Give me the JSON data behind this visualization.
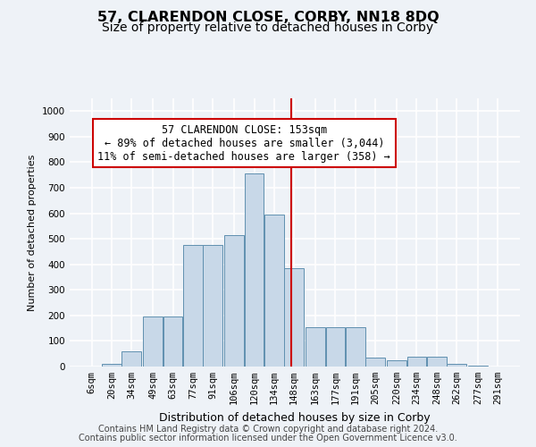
{
  "title": "57, CLARENDON CLOSE, CORBY, NN18 8DQ",
  "subtitle": "Size of property relative to detached houses in Corby",
  "xlabel": "Distribution of detached houses by size in Corby",
  "ylabel": "Number of detached properties",
  "footer1": "Contains HM Land Registry data © Crown copyright and database right 2024.",
  "footer2": "Contains public sector information licensed under the Open Government Licence v3.0.",
  "annotation_line1": "57 CLARENDON CLOSE: 153sqm",
  "annotation_line2": "← 89% of detached houses are smaller (3,044)",
  "annotation_line3": "11% of semi-detached houses are larger (358) →",
  "bar_color": "#c8d8e8",
  "bar_edge_color": "#6090b0",
  "vline_x": 153,
  "vline_color": "#cc0000",
  "categories": [
    "6sqm",
    "20sqm",
    "34sqm",
    "49sqm",
    "63sqm",
    "77sqm",
    "91sqm",
    "106sqm",
    "120sqm",
    "134sqm",
    "148sqm",
    "163sqm",
    "177sqm",
    "191sqm",
    "205sqm",
    "220sqm",
    "234sqm",
    "248sqm",
    "262sqm",
    "277sqm",
    "291sqm"
  ],
  "bin_lefts": [
    6,
    20,
    34,
    49,
    63,
    77,
    91,
    106,
    120,
    134,
    148,
    163,
    177,
    191,
    205,
    220,
    234,
    248,
    262,
    277,
    291
  ],
  "bin_width": 14,
  "values": [
    0,
    10,
    60,
    195,
    195,
    475,
    475,
    515,
    755,
    595,
    385,
    155,
    155,
    155,
    35,
    25,
    40,
    40,
    10,
    5,
    0
  ],
  "ylim": [
    0,
    1050
  ],
  "yticks": [
    0,
    100,
    200,
    300,
    400,
    500,
    600,
    700,
    800,
    900,
    1000
  ],
  "background_color": "#eef2f7",
  "grid_color": "#ffffff",
  "title_fontsize": 11.5,
  "subtitle_fontsize": 10,
  "annotation_fontsize": 8.5,
  "ylabel_fontsize": 8,
  "xlabel_fontsize": 9,
  "tick_fontsize": 7.5,
  "footer_fontsize": 7
}
